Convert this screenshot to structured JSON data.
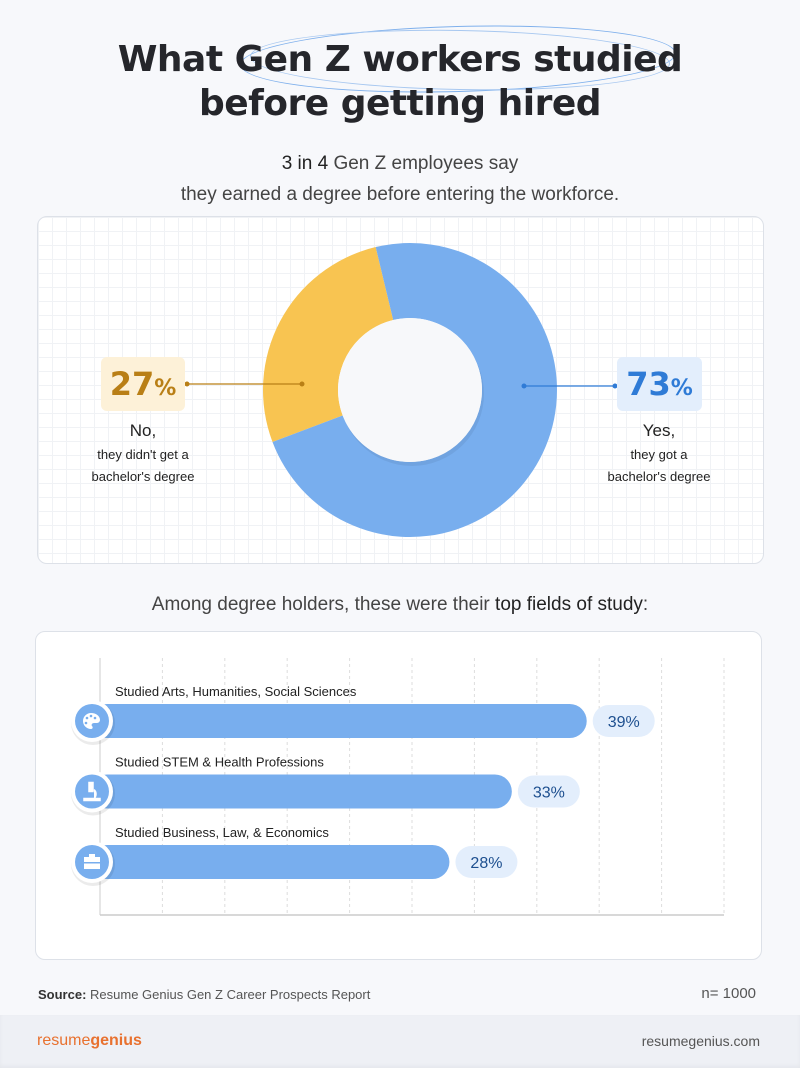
{
  "title": {
    "line1_pre": "What ",
    "line1_highlight": "Gen Z workers studied",
    "line2": "before getting hired"
  },
  "subtitle": {
    "bold": "3 in 4",
    "rest1": " Gen Z employees say",
    "line2": "they earned a degree before entering the workforce."
  },
  "colors": {
    "yes": "#78aeee",
    "no": "#f8c451",
    "yes_text": "#2f7bd6",
    "no_text": "#b97f16",
    "bar": "#78aeee",
    "brand": "#e8712f"
  },
  "chart_data": [
    {
      "type": "pie",
      "variant": "donut",
      "slices": [
        {
          "label": "No",
          "value": 27,
          "display": "27",
          "unit": "%",
          "caption_head": "No,",
          "caption_1": "they didn't get a",
          "caption_2": "bachelor's degree",
          "color": "#f8c451"
        },
        {
          "label": "Yes",
          "value": 73,
          "display": "73",
          "unit": "%",
          "caption_head": "Yes,",
          "caption_1": "they got a",
          "caption_2": "bachelor's degree",
          "color": "#78aeee"
        }
      ]
    },
    {
      "type": "bar",
      "orientation": "horizontal",
      "heading_pre": "Among degree holders, these were their ",
      "heading_bold": "top fields of study",
      "heading_post": ":",
      "xlim": [
        0,
        50
      ],
      "grid": true,
      "bars": [
        {
          "label": "Studied Arts, Humanities, Social Sciences",
          "value": 39,
          "display": "39%",
          "icon": "palette-icon"
        },
        {
          "label": "Studied STEM & Health Professions",
          "value": 33,
          "display": "33%",
          "icon": "microscope-icon"
        },
        {
          "label": "Studied Business, Law, & Economics",
          "value": 28,
          "display": "28%",
          "icon": "briefcase-icon"
        }
      ]
    }
  ],
  "source": {
    "label": "Source:",
    "text": " Resume Genius Gen Z Career Prospects Report"
  },
  "sample": "n= 1000",
  "footer": {
    "logo_1": "resume",
    "logo_2": "genius",
    "url": "resumegenius.com"
  }
}
